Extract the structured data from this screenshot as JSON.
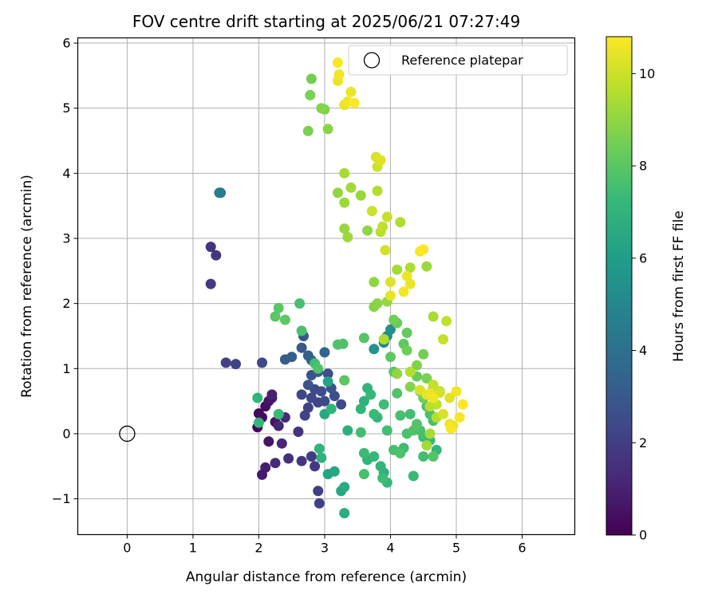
{
  "chart_data": {
    "type": "scatter",
    "title": "FOV centre drift starting at 2025/06/21 07:27:49",
    "xlabel": "Angular distance from reference (arcmin)",
    "ylabel": "Rotation from reference (arcmin)",
    "xlim": [
      -0.75,
      6.8
    ],
    "ylim": [
      -1.55,
      6.08
    ],
    "xticks": [
      0,
      1,
      2,
      3,
      4,
      5,
      6
    ],
    "yticks": [
      -1,
      0,
      1,
      2,
      3,
      4,
      5,
      6
    ],
    "xtick_labels": [
      "0",
      "1",
      "2",
      "3",
      "4",
      "5",
      "6"
    ],
    "ytick_labels": [
      "−1",
      "0",
      "1",
      "2",
      "3",
      "4",
      "5",
      "6"
    ],
    "grid": true,
    "legend": {
      "placement": "top-right",
      "entries": [
        "Reference platepar"
      ]
    },
    "reference_point": {
      "x": 0,
      "y": 0,
      "name": "Reference platepar"
    },
    "colorbar": {
      "label": "Hours from first FF file",
      "range": [
        0,
        10.8
      ],
      "ticks": [
        0,
        2,
        4,
        6,
        8,
        10
      ],
      "tick_labels": [
        "0",
        "2",
        "4",
        "6",
        "8",
        "10"
      ],
      "colormap": "viridis"
    },
    "points": [
      {
        "x": 1.98,
        "y": 0.1,
        "c": 0.1
      },
      {
        "x": 2.0,
        "y": 0.31,
        "c": 0.2
      },
      {
        "x": 2.05,
        "y": 0.25,
        "c": 0.3
      },
      {
        "x": 2.1,
        "y": 0.42,
        "c": 0.4
      },
      {
        "x": 2.15,
        "y": 0.5,
        "c": 0.6
      },
      {
        "x": 2.2,
        "y": 0.55,
        "c": 0.7
      },
      {
        "x": 2.25,
        "y": 0.18,
        "c": 0.5
      },
      {
        "x": 2.15,
        "y": -0.12,
        "c": 0.6
      },
      {
        "x": 2.1,
        "y": -0.52,
        "c": 0.9
      },
      {
        "x": 2.05,
        "y": -0.63,
        "c": 0.8
      },
      {
        "x": 2.2,
        "y": 0.6,
        "c": 1.0
      },
      {
        "x": 2.3,
        "y": 0.12,
        "c": 1.1
      },
      {
        "x": 2.35,
        "y": -0.15,
        "c": 1.2
      },
      {
        "x": 2.25,
        "y": -0.45,
        "c": 1.3
      },
      {
        "x": 2.4,
        "y": 0.25,
        "c": 1.3
      },
      {
        "x": 2.45,
        "y": -0.38,
        "c": 1.5
      },
      {
        "x": 2.6,
        "y": 0.03,
        "c": 1.6
      },
      {
        "x": 2.65,
        "y": -0.42,
        "c": 1.7
      },
      {
        "x": 2.8,
        "y": -0.35,
        "c": 1.9
      },
      {
        "x": 2.85,
        "y": -0.5,
        "c": 1.8
      },
      {
        "x": 2.9,
        "y": -0.88,
        "c": 2.0
      },
      {
        "x": 2.92,
        "y": -1.07,
        "c": 2.1
      },
      {
        "x": 2.7,
        "y": 0.28,
        "c": 2.2
      },
      {
        "x": 2.75,
        "y": 0.4,
        "c": 2.1
      },
      {
        "x": 2.8,
        "y": 0.55,
        "c": 2.3
      },
      {
        "x": 2.85,
        "y": 0.68,
        "c": 2.4
      },
      {
        "x": 2.9,
        "y": 0.48,
        "c": 2.2
      },
      {
        "x": 2.95,
        "y": 0.65,
        "c": 2.6
      },
      {
        "x": 3.0,
        "y": 0.5,
        "c": 2.5
      },
      {
        "x": 2.75,
        "y": 0.75,
        "c": 2.7
      },
      {
        "x": 2.8,
        "y": 0.9,
        "c": 2.8
      },
      {
        "x": 2.65,
        "y": 0.6,
        "c": 2.3
      },
      {
        "x": 3.05,
        "y": 0.92,
        "c": 2.6
      },
      {
        "x": 3.1,
        "y": 0.7,
        "c": 2.8
      },
      {
        "x": 3.15,
        "y": 0.58,
        "c": 2.5
      },
      {
        "x": 3.25,
        "y": 0.45,
        "c": 2.4
      },
      {
        "x": 2.9,
        "y": 0.95,
        "c": 2.9
      },
      {
        "x": 1.27,
        "y": 2.87,
        "c": 1.6
      },
      {
        "x": 1.35,
        "y": 2.74,
        "c": 1.7
      },
      {
        "x": 1.27,
        "y": 2.3,
        "c": 1.8
      },
      {
        "x": 1.5,
        "y": 1.09,
        "c": 2.1
      },
      {
        "x": 1.65,
        "y": 1.07,
        "c": 2.2
      },
      {
        "x": 2.05,
        "y": 1.09,
        "c": 2.3
      },
      {
        "x": 2.4,
        "y": 1.14,
        "c": 3.1
      },
      {
        "x": 2.5,
        "y": 1.18,
        "c": 3.2
      },
      {
        "x": 2.65,
        "y": 1.32,
        "c": 3.0
      },
      {
        "x": 2.68,
        "y": 1.5,
        "c": 2.9
      },
      {
        "x": 2.75,
        "y": 1.2,
        "c": 3.3
      },
      {
        "x": 2.8,
        "y": 1.13,
        "c": 3.4
      },
      {
        "x": 3.0,
        "y": 1.25,
        "c": 3.5
      },
      {
        "x": 1.4,
        "y": 3.7,
        "c": 4.5
      },
      {
        "x": 1.42,
        "y": 3.7,
        "c": 4.6
      },
      {
        "x": 3.9,
        "y": 1.4,
        "c": 5.0
      },
      {
        "x": 3.95,
        "y": 1.5,
        "c": 5.2
      },
      {
        "x": 4.0,
        "y": 1.6,
        "c": 5.4
      },
      {
        "x": 3.75,
        "y": 1.3,
        "c": 5.6
      },
      {
        "x": 3.05,
        "y": 0.8,
        "c": 6.2
      },
      {
        "x": 3.0,
        "y": 0.3,
        "c": 6.5
      },
      {
        "x": 3.05,
        "y": -0.62,
        "c": 6.3
      },
      {
        "x": 3.15,
        "y": -0.58,
        "c": 6.4
      },
      {
        "x": 3.25,
        "y": -0.88,
        "c": 6.5
      },
      {
        "x": 3.3,
        "y": -0.82,
        "c": 6.6
      },
      {
        "x": 3.3,
        "y": -1.22,
        "c": 6.7
      },
      {
        "x": 3.35,
        "y": 0.05,
        "c": 6.8
      },
      {
        "x": 2.95,
        "y": -0.37,
        "c": 6.9
      },
      {
        "x": 3.1,
        "y": 0.38,
        "c": 7.0
      },
      {
        "x": 3.55,
        "y": 0.38,
        "c": 7.1
      },
      {
        "x": 3.6,
        "y": 0.5,
        "c": 6.9
      },
      {
        "x": 3.65,
        "y": 0.7,
        "c": 7.0
      },
      {
        "x": 3.7,
        "y": 0.6,
        "c": 7.2
      },
      {
        "x": 3.75,
        "y": 0.3,
        "c": 7.3
      },
      {
        "x": 3.8,
        "y": 0.25,
        "c": 7.1
      },
      {
        "x": 3.9,
        "y": 0.45,
        "c": 7.4
      },
      {
        "x": 3.55,
        "y": 0.02,
        "c": 7.5
      },
      {
        "x": 3.6,
        "y": -0.3,
        "c": 7.3
      },
      {
        "x": 3.65,
        "y": -0.4,
        "c": 7.0
      },
      {
        "x": 3.75,
        "y": -0.35,
        "c": 7.2
      },
      {
        "x": 3.85,
        "y": -0.5,
        "c": 7.1
      },
      {
        "x": 3.9,
        "y": -0.6,
        "c": 6.9
      },
      {
        "x": 3.95,
        "y": -0.75,
        "c": 7.2
      },
      {
        "x": 3.88,
        "y": -0.68,
        "c": 7.4
      },
      {
        "x": 3.6,
        "y": -0.62,
        "c": 7.6
      },
      {
        "x": 3.95,
        "y": 0.05,
        "c": 7.5
      },
      {
        "x": 4.05,
        "y": -0.25,
        "c": 7.6
      },
      {
        "x": 4.15,
        "y": -0.3,
        "c": 7.7
      },
      {
        "x": 4.2,
        "y": -0.22,
        "c": 7.4
      },
      {
        "x": 4.35,
        "y": -0.65,
        "c": 7.3
      },
      {
        "x": 4.1,
        "y": 0.62,
        "c": 7.8
      },
      {
        "x": 4.15,
        "y": 0.28,
        "c": 7.6
      },
      {
        "x": 4.3,
        "y": 0.3,
        "c": 7.5
      },
      {
        "x": 4.25,
        "y": 0.0,
        "c": 7.7
      },
      {
        "x": 4.35,
        "y": 0.05,
        "c": 7.8
      },
      {
        "x": 4.4,
        "y": 0.15,
        "c": 7.9
      },
      {
        "x": 4.45,
        "y": 0.05,
        "c": 7.6
      },
      {
        "x": 4.5,
        "y": -0.05,
        "c": 7.4
      },
      {
        "x": 4.6,
        "y": -0.1,
        "c": 7.3
      },
      {
        "x": 4.7,
        "y": -0.25,
        "c": 7.2
      },
      {
        "x": 4.55,
        "y": 0.42,
        "c": 7.8
      },
      {
        "x": 4.6,
        "y": 0.3,
        "c": 7.7
      },
      {
        "x": 4.65,
        "y": 0.2,
        "c": 7.6
      },
      {
        "x": 4.65,
        "y": -0.35,
        "c": 7.9
      },
      {
        "x": 4.5,
        "y": -0.35,
        "c": 7.5
      },
      {
        "x": 3.3,
        "y": 0.82,
        "c": 8.0
      },
      {
        "x": 3.2,
        "y": 1.37,
        "c": 7.8
      },
      {
        "x": 3.28,
        "y": 1.38,
        "c": 7.7
      },
      {
        "x": 3.6,
        "y": 1.47,
        "c": 7.9
      },
      {
        "x": 2.62,
        "y": 2.0,
        "c": 7.6
      },
      {
        "x": 2.65,
        "y": 1.58,
        "c": 7.7
      },
      {
        "x": 2.3,
        "y": 1.93,
        "c": 8.0
      },
      {
        "x": 2.25,
        "y": 1.8,
        "c": 8.0
      },
      {
        "x": 2.4,
        "y": 1.75,
        "c": 8.1
      },
      {
        "x": 1.98,
        "y": 0.55,
        "c": 7.0
      },
      {
        "x": 2.0,
        "y": 0.17,
        "c": 7.2
      },
      {
        "x": 2.3,
        "y": 0.3,
        "c": 7.3
      },
      {
        "x": 2.85,
        "y": 1.08,
        "c": 7.5
      },
      {
        "x": 2.9,
        "y": 1.0,
        "c": 7.8
      },
      {
        "x": 2.92,
        "y": -0.23,
        "c": 7.0
      },
      {
        "x": 4.05,
        "y": 0.95,
        "c": 8.0
      },
      {
        "x": 4.0,
        "y": 1.18,
        "c": 8.1
      },
      {
        "x": 4.2,
        "y": 1.38,
        "c": 8.1
      },
      {
        "x": 4.25,
        "y": 1.55,
        "c": 8.2
      },
      {
        "x": 4.1,
        "y": 1.7,
        "c": 8.3
      },
      {
        "x": 4.25,
        "y": 1.28,
        "c": 8.4
      },
      {
        "x": 4.4,
        "y": 0.88,
        "c": 8.3
      },
      {
        "x": 4.45,
        "y": 0.65,
        "c": 8.2
      },
      {
        "x": 4.5,
        "y": 0.55,
        "c": 8.4
      },
      {
        "x": 4.55,
        "y": 0.85,
        "c": 8.6
      },
      {
        "x": 4.5,
        "y": 1.22,
        "c": 8.5
      },
      {
        "x": 4.4,
        "y": 1.05,
        "c": 8.7
      },
      {
        "x": 4.3,
        "y": 0.72,
        "c": 8.8
      },
      {
        "x": 4.65,
        "y": 0.7,
        "c": 8.9
      },
      {
        "x": 3.75,
        "y": 1.95,
        "c": 8.8
      },
      {
        "x": 3.8,
        "y": 2.0,
        "c": 8.9
      },
      {
        "x": 3.75,
        "y": 2.33,
        "c": 9.0
      },
      {
        "x": 3.95,
        "y": 2.03,
        "c": 9.1
      },
      {
        "x": 4.1,
        "y": 2.52,
        "c": 9.3
      },
      {
        "x": 4.3,
        "y": 2.55,
        "c": 9.5
      },
      {
        "x": 4.55,
        "y": 2.57,
        "c": 9.2
      },
      {
        "x": 4.65,
        "y": 1.8,
        "c": 9.4
      },
      {
        "x": 4.85,
        "y": 1.73,
        "c": 9.8
      },
      {
        "x": 4.8,
        "y": 1.45,
        "c": 9.9
      },
      {
        "x": 3.65,
        "y": 3.12,
        "c": 9.0
      },
      {
        "x": 3.3,
        "y": 3.15,
        "c": 9.1
      },
      {
        "x": 3.35,
        "y": 3.02,
        "c": 9.2
      },
      {
        "x": 3.2,
        "y": 3.7,
        "c": 9.0
      },
      {
        "x": 3.3,
        "y": 3.55,
        "c": 9.2
      },
      {
        "x": 3.4,
        "y": 3.78,
        "c": 9.3
      },
      {
        "x": 3.3,
        "y": 4.0,
        "c": 9.4
      },
      {
        "x": 3.55,
        "y": 3.66,
        "c": 9.1
      },
      {
        "x": 3.8,
        "y": 3.73,
        "c": 9.6
      },
      {
        "x": 3.85,
        "y": 3.1,
        "c": 9.7
      },
      {
        "x": 3.88,
        "y": 3.18,
        "c": 9.8
      },
      {
        "x": 3.95,
        "y": 3.33,
        "c": 9.9
      },
      {
        "x": 3.72,
        "y": 3.42,
        "c": 10.0
      },
      {
        "x": 4.15,
        "y": 3.25,
        "c": 9.5
      },
      {
        "x": 3.92,
        "y": 2.82,
        "c": 10.1
      },
      {
        "x": 4.0,
        "y": 2.33,
        "c": 10.3
      },
      {
        "x": 4.0,
        "y": 2.12,
        "c": 10.4
      },
      {
        "x": 4.25,
        "y": 2.42,
        "c": 10.5
      },
      {
        "x": 4.2,
        "y": 2.18,
        "c": 10.6
      },
      {
        "x": 4.3,
        "y": 2.3,
        "c": 10.5
      },
      {
        "x": 4.45,
        "y": 2.8,
        "c": 10.7
      },
      {
        "x": 4.5,
        "y": 2.83,
        "c": 10.8
      },
      {
        "x": 3.78,
        "y": 4.25,
        "c": 10.2
      },
      {
        "x": 3.85,
        "y": 4.2,
        "c": 10.3
      },
      {
        "x": 3.8,
        "y": 4.1,
        "c": 10.0
      },
      {
        "x": 2.8,
        "y": 5.45,
        "c": 8.5
      },
      {
        "x": 2.78,
        "y": 5.2,
        "c": 8.6
      },
      {
        "x": 2.95,
        "y": 5.0,
        "c": 8.8
      },
      {
        "x": 3.0,
        "y": 4.98,
        "c": 8.7
      },
      {
        "x": 2.75,
        "y": 4.65,
        "c": 8.6
      },
      {
        "x": 3.05,
        "y": 4.68,
        "c": 8.9
      },
      {
        "x": 3.2,
        "y": 5.42,
        "c": 10.5
      },
      {
        "x": 3.22,
        "y": 5.52,
        "c": 10.6
      },
      {
        "x": 3.2,
        "y": 5.7,
        "c": 10.7
      },
      {
        "x": 3.3,
        "y": 5.05,
        "c": 10.4
      },
      {
        "x": 3.35,
        "y": 5.1,
        "c": 10.6
      },
      {
        "x": 3.4,
        "y": 5.25,
        "c": 10.5
      },
      {
        "x": 3.45,
        "y": 5.08,
        "c": 10.8
      },
      {
        "x": 3.9,
        "y": 1.45,
        "c": 9.5
      },
      {
        "x": 4.05,
        "y": 1.75,
        "c": 8.5
      },
      {
        "x": 4.1,
        "y": 0.92,
        "c": 9.0
      },
      {
        "x": 4.3,
        "y": 0.95,
        "c": 9.6
      },
      {
        "x": 4.45,
        "y": 0.67,
        "c": 10.2
      },
      {
        "x": 4.55,
        "y": 0.6,
        "c": 10.4
      },
      {
        "x": 4.6,
        "y": 0.62,
        "c": 10.5
      },
      {
        "x": 4.65,
        "y": 0.55,
        "c": 10.6
      },
      {
        "x": 4.75,
        "y": 0.63,
        "c": 10.1
      },
      {
        "x": 4.8,
        "y": 0.3,
        "c": 10.2
      },
      {
        "x": 4.9,
        "y": 0.55,
        "c": 10.3
      },
      {
        "x": 4.95,
        "y": 0.12,
        "c": 10.4
      },
      {
        "x": 4.9,
        "y": 0.15,
        "c": 10.5
      },
      {
        "x": 5.0,
        "y": 0.65,
        "c": 10.6
      },
      {
        "x": 5.05,
        "y": 0.25,
        "c": 10.7
      },
      {
        "x": 5.1,
        "y": 0.45,
        "c": 10.8
      },
      {
        "x": 4.92,
        "y": 0.08,
        "c": 10.7
      },
      {
        "x": 4.7,
        "y": 0.45,
        "c": 9.8
      },
      {
        "x": 4.7,
        "y": 0.25,
        "c": 9.6
      },
      {
        "x": 4.6,
        "y": 0.0,
        "c": 9.4
      },
      {
        "x": 4.55,
        "y": -0.18,
        "c": 9.3
      },
      {
        "x": 4.6,
        "y": 0.42,
        "c": 9.7
      },
      {
        "x": 4.65,
        "y": 0.75,
        "c": 9.9
      },
      {
        "x": 4.75,
        "y": 0.65,
        "c": 9.4
      }
    ]
  }
}
